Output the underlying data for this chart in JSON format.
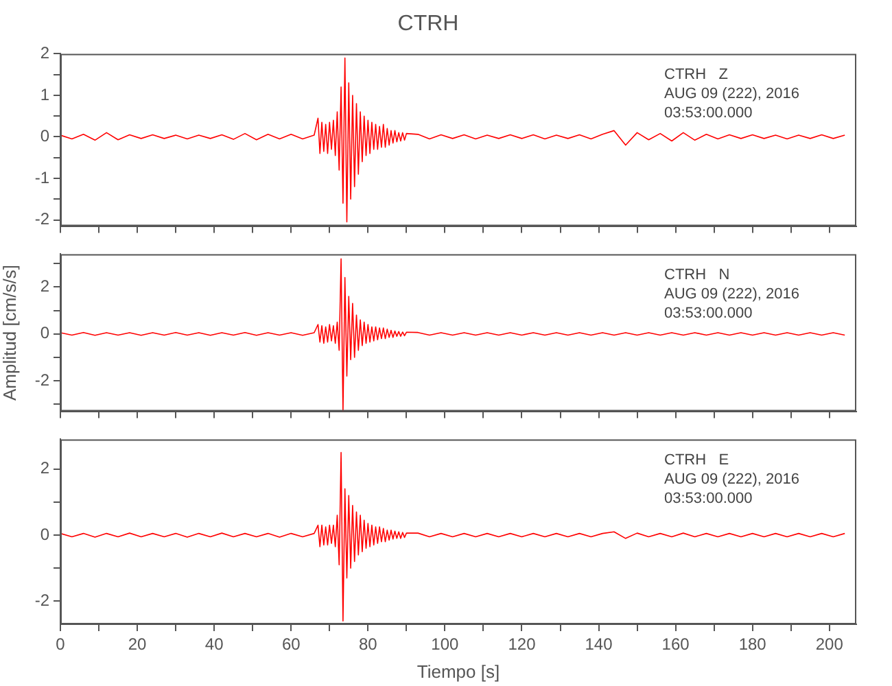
{
  "chart_data": [
    {
      "type": "line",
      "title": "CTRH",
      "color": "#ff0000",
      "tick_labels": "y",
      "grid": false,
      "annotations": [
        "CTRH   Z",
        "AUG 09 (222), 2016",
        "03:53:00.000"
      ],
      "xlim": [
        0,
        207
      ],
      "xticks": [
        0,
        10,
        20,
        30,
        40,
        50,
        60,
        70,
        80,
        90,
        100,
        110,
        120,
        130,
        140,
        150,
        160,
        170,
        180,
        190,
        200
      ],
      "ylim": [
        -2.15,
        2
      ],
      "yticks": [
        -2,
        {
          "value": -1.5,
          "label": null
        },
        -1,
        {
          "value": -0.5,
          "label": null
        },
        0,
        {
          "value": 0.5,
          "label": null
        },
        1,
        {
          "value": 1.5,
          "label": null
        },
        2
      ],
      "x": [
        0,
        3,
        6,
        9,
        12,
        15,
        18,
        21,
        24,
        27,
        30,
        33,
        36,
        39,
        42,
        45,
        48,
        51,
        54,
        57,
        60,
        63,
        66,
        67,
        67.5,
        68,
        68.5,
        69,
        69.5,
        70,
        70.5,
        71,
        71.5,
        72,
        72.5,
        73,
        73.5,
        74,
        74.5,
        75,
        75.5,
        76,
        76.5,
        77,
        77.5,
        78,
        78.5,
        79,
        79.5,
        80,
        80.5,
        81,
        81.5,
        82,
        82.5,
        83,
        83.5,
        84,
        84.5,
        85,
        85.5,
        86,
        86.5,
        87,
        87.5,
        88,
        88.5,
        89,
        89.5,
        90,
        93,
        96,
        99,
        102,
        105,
        108,
        111,
        114,
        117,
        120,
        123,
        126,
        129,
        132,
        135,
        138,
        141,
        144,
        147,
        150,
        153,
        156,
        159,
        162,
        165,
        168,
        171,
        174,
        177,
        180,
        183,
        186,
        189,
        192,
        195,
        198,
        201,
        204
      ],
      "values": [
        0.04,
        -0.05,
        0.06,
        -0.08,
        0.1,
        -0.07,
        0.05,
        -0.04,
        0.05,
        -0.04,
        0.04,
        -0.05,
        0.04,
        -0.04,
        0.05,
        -0.06,
        0.08,
        -0.07,
        0.06,
        -0.05,
        0.06,
        -0.05,
        0.04,
        0.45,
        -0.4,
        0.35,
        -0.35,
        0.3,
        -0.4,
        0.35,
        -0.3,
        0.4,
        -0.45,
        0.6,
        -0.8,
        1.2,
        -1.6,
        1.9,
        -2.05,
        1.3,
        -1.5,
        1.0,
        -1.2,
        0.8,
        -0.9,
        0.6,
        -0.6,
        0.5,
        -0.45,
        0.4,
        -0.4,
        0.35,
        -0.3,
        0.3,
        -0.3,
        0.25,
        -0.25,
        0.3,
        -0.25,
        0.2,
        -0.2,
        0.15,
        -0.15,
        0.15,
        -0.12,
        0.1,
        -0.1,
        0.1,
        -0.08,
        0.08,
        0.06,
        -0.05,
        0.05,
        -0.04,
        0.05,
        -0.05,
        0.04,
        -0.04,
        0.05,
        -0.04,
        0.05,
        -0.05,
        0.04,
        -0.04,
        0.05,
        -0.05,
        0.06,
        0.15,
        -0.2,
        0.1,
        -0.07,
        0.08,
        -0.1,
        0.1,
        -0.08,
        0.06,
        -0.05,
        0.05,
        -0.04,
        0.05,
        -0.04,
        0.04,
        -0.05,
        0.04,
        -0.04,
        0.05,
        -0.04,
        0.04
      ]
    },
    {
      "type": "line",
      "ylabel": "Amplitud [cm/s/s]",
      "color": "#ff0000",
      "tick_labels": "y",
      "grid": false,
      "annotations": [
        "CTRH   N",
        "AUG 09 (222), 2016",
        "03:53:00.000"
      ],
      "xlim": [
        0,
        207
      ],
      "xticks": [
        0,
        10,
        20,
        30,
        40,
        50,
        60,
        70,
        80,
        90,
        100,
        110,
        120,
        130,
        140,
        150,
        160,
        170,
        180,
        190,
        200
      ],
      "ylim": [
        -3.3,
        3.4
      ],
      "yticks": [
        {
          "value": -3,
          "label": null
        },
        -2,
        {
          "value": -1,
          "label": null
        },
        0,
        {
          "value": 1,
          "label": null
        },
        2,
        {
          "value": 3,
          "label": null
        }
      ],
      "x": [
        0,
        3,
        6,
        9,
        12,
        15,
        18,
        21,
        24,
        27,
        30,
        33,
        36,
        39,
        42,
        45,
        48,
        51,
        54,
        57,
        60,
        63,
        66,
        67,
        67.5,
        68,
        68.5,
        69,
        69.5,
        70,
        70.5,
        71,
        71.5,
        72,
        72.5,
        73,
        73.5,
        74,
        74.5,
        75,
        75.5,
        76,
        76.5,
        77,
        77.5,
        78,
        78.5,
        79,
        79.5,
        80,
        80.5,
        81,
        81.5,
        82,
        82.5,
        83,
        83.5,
        84,
        84.5,
        85,
        85.5,
        86,
        86.5,
        87,
        87.5,
        88,
        88.5,
        89,
        89.5,
        90,
        93,
        96,
        99,
        102,
        105,
        108,
        111,
        114,
        117,
        120,
        123,
        126,
        129,
        132,
        135,
        138,
        141,
        144,
        147,
        150,
        153,
        156,
        159,
        162,
        165,
        168,
        171,
        174,
        177,
        180,
        183,
        186,
        189,
        192,
        195,
        198,
        201,
        204
      ],
      "values": [
        0.05,
        -0.05,
        0.06,
        -0.06,
        0.05,
        -0.05,
        0.05,
        -0.06,
        0.05,
        -0.05,
        0.06,
        -0.05,
        0.05,
        -0.06,
        0.05,
        -0.05,
        0.06,
        -0.06,
        0.05,
        -0.05,
        0.05,
        -0.06,
        0.05,
        0.4,
        -0.35,
        0.35,
        -0.4,
        0.3,
        -0.35,
        0.4,
        -0.3,
        0.35,
        -0.4,
        0.5,
        -0.7,
        3.2,
        -3.3,
        2.4,
        -1.8,
        1.6,
        -1.1,
        1.3,
        -1.0,
        0.8,
        -0.7,
        0.6,
        -0.5,
        0.5,
        -0.4,
        0.4,
        -0.35,
        0.3,
        -0.3,
        0.3,
        -0.25,
        0.25,
        -0.2,
        0.25,
        -0.2,
        0.2,
        -0.15,
        0.15,
        -0.15,
        0.12,
        -0.1,
        0.1,
        -0.1,
        0.08,
        -0.08,
        0.07,
        0.06,
        -0.05,
        0.05,
        -0.05,
        0.05,
        -0.05,
        0.05,
        -0.05,
        0.05,
        -0.05,
        0.05,
        -0.05,
        0.05,
        -0.05,
        0.05,
        -0.05,
        0.05,
        -0.05,
        0.05,
        -0.05,
        0.05,
        -0.05,
        0.05,
        -0.05,
        0.05,
        -0.05,
        0.05,
        -0.05,
        0.05,
        -0.05,
        0.05,
        -0.05,
        0.05,
        -0.05,
        0.05,
        -0.05,
        0.05,
        -0.05
      ]
    },
    {
      "type": "line",
      "xlabel": "Tiempo [s]",
      "color": "#ff0000",
      "grid": false,
      "annotations": [
        "CTRH   E",
        "AUG 09 (222), 2016",
        "03:53:00.000"
      ],
      "xlim": [
        0,
        207
      ],
      "xticks": [
        {
          "value": 0,
          "label": "0"
        },
        {
          "value": 10,
          "label": null
        },
        {
          "value": 20,
          "label": "20"
        },
        {
          "value": 30,
          "label": null
        },
        {
          "value": 40,
          "label": "40"
        },
        {
          "value": 50,
          "label": null
        },
        {
          "value": 60,
          "label": "60"
        },
        {
          "value": 70,
          "label": null
        },
        {
          "value": 80,
          "label": "80"
        },
        {
          "value": 90,
          "label": null
        },
        {
          "value": 100,
          "label": "100"
        },
        {
          "value": 110,
          "label": null
        },
        {
          "value": 120,
          "label": "120"
        },
        {
          "value": 130,
          "label": null
        },
        {
          "value": 140,
          "label": "140"
        },
        {
          "value": 150,
          "label": null
        },
        {
          "value": 160,
          "label": "160"
        },
        {
          "value": 170,
          "label": null
        },
        {
          "value": 180,
          "label": "180"
        },
        {
          "value": 190,
          "label": null
        },
        {
          "value": 200,
          "label": "200"
        }
      ],
      "ylim": [
        -2.7,
        2.9
      ],
      "yticks": [
        -2,
        {
          "value": -1,
          "label": null
        },
        0,
        {
          "value": 1,
          "label": null
        },
        2
      ],
      "x": [
        0,
        3,
        6,
        9,
        12,
        15,
        18,
        21,
        24,
        27,
        30,
        33,
        36,
        39,
        42,
        45,
        48,
        51,
        54,
        57,
        60,
        63,
        66,
        67,
        67.5,
        68,
        68.5,
        69,
        69.5,
        70,
        70.5,
        71,
        71.5,
        72,
        72.5,
        73,
        73.5,
        74,
        74.5,
        75,
        75.5,
        76,
        76.5,
        77,
        77.5,
        78,
        78.5,
        79,
        79.5,
        80,
        80.5,
        81,
        81.5,
        82,
        82.5,
        83,
        83.5,
        84,
        84.5,
        85,
        85.5,
        86,
        86.5,
        87,
        87.5,
        88,
        88.5,
        89,
        89.5,
        90,
        93,
        96,
        99,
        102,
        105,
        108,
        111,
        114,
        117,
        120,
        123,
        126,
        129,
        132,
        135,
        138,
        141,
        144,
        147,
        150,
        153,
        156,
        159,
        162,
        165,
        168,
        171,
        174,
        177,
        180,
        183,
        186,
        189,
        192,
        195,
        198,
        201,
        204
      ],
      "values": [
        0.05,
        -0.05,
        0.05,
        -0.06,
        0.05,
        -0.05,
        0.06,
        -0.05,
        0.05,
        -0.05,
        0.05,
        -0.06,
        0.05,
        -0.05,
        0.06,
        -0.05,
        0.05,
        -0.05,
        0.05,
        -0.06,
        0.05,
        -0.05,
        0.05,
        0.3,
        -0.35,
        0.3,
        -0.3,
        0.25,
        -0.3,
        0.3,
        -0.25,
        0.3,
        -0.35,
        0.6,
        -0.9,
        2.5,
        -2.6,
        1.4,
        -1.3,
        1.2,
        -1.0,
        0.9,
        -0.8,
        0.7,
        -0.6,
        0.6,
        -0.5,
        0.45,
        -0.4,
        0.35,
        -0.35,
        0.3,
        -0.3,
        0.25,
        -0.25,
        0.25,
        -0.2,
        0.2,
        -0.2,
        0.15,
        -0.15,
        0.15,
        -0.12,
        0.12,
        -0.1,
        0.1,
        -0.1,
        0.08,
        -0.07,
        0.06,
        0.06,
        -0.05,
        0.05,
        -0.05,
        0.05,
        -0.05,
        0.05,
        -0.05,
        0.05,
        -0.05,
        0.05,
        -0.05,
        0.05,
        -0.05,
        0.05,
        -0.05,
        0.05,
        0.1,
        -0.1,
        0.06,
        -0.05,
        0.05,
        -0.05,
        0.06,
        -0.05,
        0.05,
        -0.05,
        0.05,
        -0.05,
        0.05,
        -0.05,
        0.05,
        -0.05,
        0.05,
        -0.05,
        0.05,
        -0.05,
        0.05
      ]
    }
  ]
}
